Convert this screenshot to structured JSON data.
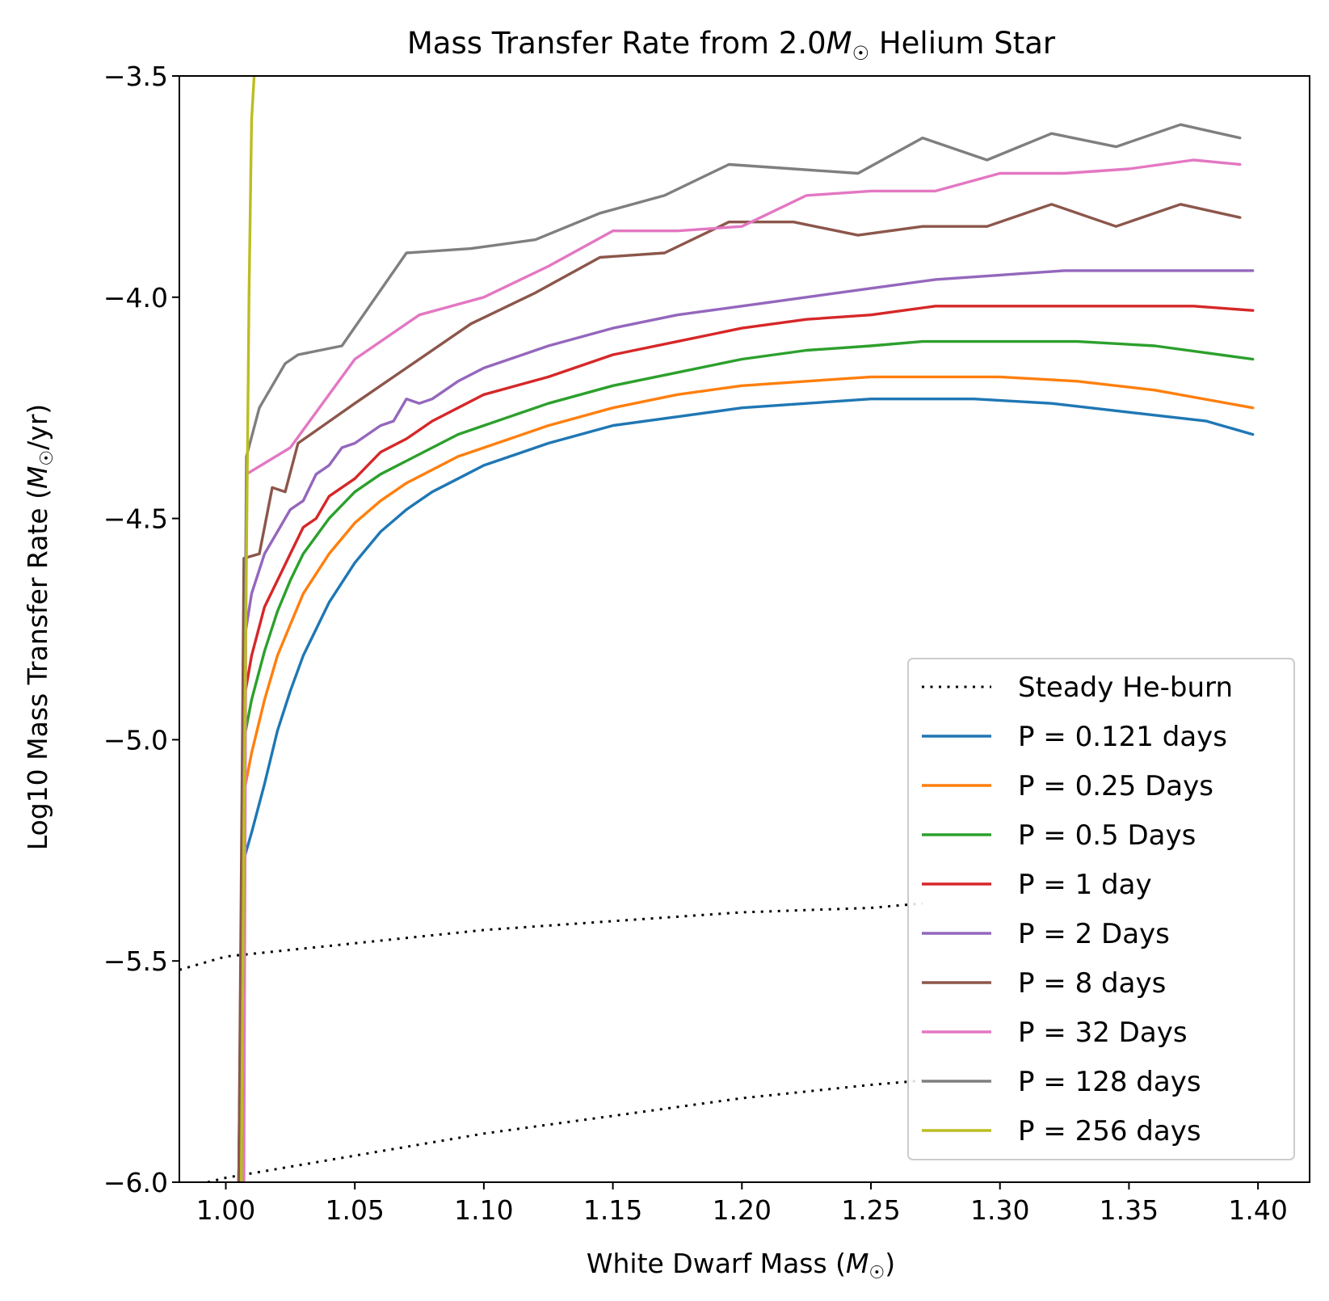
{
  "chart_data": {
    "type": "line",
    "title": "Mass Transfer Rate from 2.0M☉ Helium Star",
    "title_parts": {
      "pre": "Mass Transfer Rate from 2.0",
      "sym": "M",
      "sub": "☉",
      "post": " Helium Star"
    },
    "xlabel": "White Dwarf Mass (M☉)",
    "xlabel_parts": {
      "pre": "White Dwarf Mass (",
      "sym": "M",
      "sub": "☉",
      "post": ")"
    },
    "ylabel": "Log10 Mass Transfer Rate (M☉/yr)",
    "ylabel_parts": {
      "pre": "Log10 Mass Transfer Rate (",
      "sym": "M",
      "sub": "☉",
      "post": "/yr)"
    },
    "xlim": [
      0.982,
      1.42
    ],
    "ylim": [
      -6.0,
      -3.5
    ],
    "xticks": [
      1.0,
      1.05,
      1.1,
      1.15,
      1.2,
      1.25,
      1.3,
      1.35,
      1.4
    ],
    "xtick_labels": [
      "1.00",
      "1.05",
      "1.10",
      "1.15",
      "1.20",
      "1.25",
      "1.30",
      "1.35",
      "1.40"
    ],
    "yticks": [
      -3.5,
      -4.0,
      -4.5,
      -5.0,
      -5.5,
      -6.0
    ],
    "ytick_labels": [
      "−3.5",
      "−4.0",
      "−4.5",
      "−5.0",
      "−5.5",
      "−6.0"
    ],
    "grid": false,
    "legend_position": "lower-right",
    "legend": [
      {
        "label": "Steady He-burn",
        "color": "#000000",
        "style": "dotted"
      },
      {
        "label": "P = 0.121 days",
        "color": "#1f77b4",
        "style": "solid"
      },
      {
        "label": "P = 0.25 Days",
        "color": "#ff7f0e",
        "style": "solid"
      },
      {
        "label": "P = 0.5 Days",
        "color": "#2ca02c",
        "style": "solid"
      },
      {
        "label": "P = 1 day",
        "color": "#d62728",
        "style": "solid"
      },
      {
        "label": "P = 2 Days",
        "color": "#9467bd",
        "style": "solid"
      },
      {
        "label": "P = 8 days",
        "color": "#8c564b",
        "style": "solid"
      },
      {
        "label": "P = 32 Days",
        "color": "#e377c2",
        "style": "solid"
      },
      {
        "label": "P = 128 days",
        "color": "#7f7f7f",
        "style": "solid"
      },
      {
        "label": "P = 256 days",
        "color": "#bcbd22",
        "style": "solid"
      }
    ],
    "series": [
      {
        "name": "Steady He-burn",
        "color": "#000000",
        "style": "dotted",
        "x": [
          0.982,
          1.0,
          1.05,
          1.1,
          1.15,
          1.2,
          1.25,
          1.27
        ],
        "y": [
          -5.52,
          -5.49,
          -5.46,
          -5.43,
          -5.41,
          -5.39,
          -5.38,
          -5.37
        ]
      },
      {
        "name": "Steady He-burn (lower)",
        "color": "#000000",
        "style": "dotted",
        "x": [
          0.993,
          1.0,
          1.05,
          1.1,
          1.15,
          1.2,
          1.25,
          1.27
        ],
        "y": [
          -6.0,
          -5.99,
          -5.94,
          -5.89,
          -5.85,
          -5.81,
          -5.78,
          -5.77
        ]
      },
      {
        "name": "P = 0.121 days",
        "color": "#1f77b4",
        "style": "solid",
        "x": [
          1.005,
          1.007,
          1.01,
          1.015,
          1.02,
          1.025,
          1.03,
          1.04,
          1.05,
          1.06,
          1.07,
          1.08,
          1.09,
          1.1,
          1.125,
          1.15,
          1.175,
          1.2,
          1.225,
          1.25,
          1.265,
          1.29,
          1.32,
          1.35,
          1.38,
          1.398
        ],
        "y": [
          -6.0,
          -5.27,
          -5.21,
          -5.1,
          -4.98,
          -4.89,
          -4.81,
          -4.69,
          -4.6,
          -4.53,
          -4.48,
          -4.44,
          -4.41,
          -4.38,
          -4.33,
          -4.29,
          -4.27,
          -4.25,
          -4.24,
          -4.23,
          -4.23,
          -4.23,
          -4.24,
          -4.26,
          -4.28,
          -4.31
        ]
      },
      {
        "name": "P = 0.25 Days",
        "color": "#ff7f0e",
        "style": "solid",
        "x": [
          1.005,
          1.007,
          1.01,
          1.015,
          1.02,
          1.025,
          1.03,
          1.04,
          1.05,
          1.06,
          1.07,
          1.08,
          1.09,
          1.1,
          1.125,
          1.15,
          1.175,
          1.2,
          1.225,
          1.25,
          1.27,
          1.3,
          1.33,
          1.36,
          1.398
        ],
        "y": [
          -6.0,
          -5.12,
          -5.03,
          -4.91,
          -4.81,
          -4.74,
          -4.67,
          -4.58,
          -4.51,
          -4.46,
          -4.42,
          -4.39,
          -4.36,
          -4.34,
          -4.29,
          -4.25,
          -4.22,
          -4.2,
          -4.19,
          -4.18,
          -4.18,
          -4.18,
          -4.19,
          -4.21,
          -4.25
        ]
      },
      {
        "name": "P = 0.5 Days",
        "color": "#2ca02c",
        "style": "solid",
        "x": [
          1.005,
          1.007,
          1.01,
          1.015,
          1.02,
          1.025,
          1.03,
          1.04,
          1.05,
          1.06,
          1.07,
          1.08,
          1.09,
          1.1,
          1.125,
          1.15,
          1.175,
          1.2,
          1.225,
          1.25,
          1.27,
          1.3,
          1.33,
          1.36,
          1.398
        ],
        "y": [
          -6.0,
          -5.0,
          -4.91,
          -4.8,
          -4.71,
          -4.64,
          -4.58,
          -4.5,
          -4.44,
          -4.4,
          -4.37,
          -4.34,
          -4.31,
          -4.29,
          -4.24,
          -4.2,
          -4.17,
          -4.14,
          -4.12,
          -4.11,
          -4.1,
          -4.1,
          -4.1,
          -4.11,
          -4.14
        ]
      },
      {
        "name": "P = 1 day",
        "color": "#d62728",
        "style": "solid",
        "x": [
          1.005,
          1.007,
          1.01,
          1.015,
          1.02,
          1.025,
          1.03,
          1.035,
          1.04,
          1.05,
          1.06,
          1.07,
          1.08,
          1.09,
          1.1,
          1.125,
          1.15,
          1.175,
          1.2,
          1.225,
          1.25,
          1.275,
          1.3,
          1.325,
          1.35,
          1.375,
          1.398
        ],
        "y": [
          -6.0,
          -4.91,
          -4.81,
          -4.7,
          -4.64,
          -4.58,
          -4.52,
          -4.5,
          -4.45,
          -4.41,
          -4.35,
          -4.32,
          -4.28,
          -4.25,
          -4.22,
          -4.18,
          -4.13,
          -4.1,
          -4.07,
          -4.05,
          -4.04,
          -4.02,
          -4.02,
          -4.02,
          -4.02,
          -4.02,
          -4.03
        ]
      },
      {
        "name": "P = 2 Days",
        "color": "#9467bd",
        "style": "solid",
        "x": [
          1.005,
          1.007,
          1.01,
          1.015,
          1.02,
          1.025,
          1.03,
          1.035,
          1.04,
          1.045,
          1.05,
          1.06,
          1.065,
          1.07,
          1.075,
          1.08,
          1.09,
          1.1,
          1.125,
          1.15,
          1.175,
          1.2,
          1.225,
          1.25,
          1.275,
          1.3,
          1.325,
          1.35,
          1.375,
          1.398
        ],
        "y": [
          -6.0,
          -4.78,
          -4.67,
          -4.58,
          -4.53,
          -4.48,
          -4.46,
          -4.4,
          -4.38,
          -4.34,
          -4.33,
          -4.29,
          -4.28,
          -4.23,
          -4.24,
          -4.23,
          -4.19,
          -4.16,
          -4.11,
          -4.07,
          -4.04,
          -4.02,
          -4.0,
          -3.98,
          -3.96,
          -3.95,
          -3.94,
          -3.94,
          -3.94,
          -3.94
        ]
      },
      {
        "name": "P = 8 days",
        "color": "#8c564b",
        "style": "solid",
        "x": [
          1.005,
          1.007,
          1.013,
          1.018,
          1.023,
          1.028,
          1.05,
          1.07,
          1.095,
          1.12,
          1.145,
          1.17,
          1.195,
          1.22,
          1.245,
          1.27,
          1.295,
          1.32,
          1.345,
          1.37,
          1.393
        ],
        "y": [
          -6.0,
          -4.59,
          -4.58,
          -4.43,
          -4.44,
          -4.33,
          -4.24,
          -4.16,
          -4.06,
          -3.99,
          -3.91,
          -3.9,
          -3.83,
          -3.83,
          -3.86,
          -3.84,
          -3.84,
          -3.79,
          -3.84,
          -3.79,
          -3.82
        ]
      },
      {
        "name": "P = 32 Days",
        "color": "#e377c2",
        "style": "solid",
        "x": [
          1.007,
          1.008,
          1.025,
          1.05,
          1.075,
          1.1,
          1.125,
          1.15,
          1.175,
          1.2,
          1.225,
          1.25,
          1.275,
          1.3,
          1.325,
          1.35,
          1.375,
          1.393
        ],
        "y": [
          -6.0,
          -4.4,
          -4.34,
          -4.14,
          -4.04,
          -4.0,
          -3.93,
          -3.85,
          -3.85,
          -3.84,
          -3.77,
          -3.76,
          -3.76,
          -3.72,
          -3.72,
          -3.71,
          -3.69,
          -3.7
        ]
      },
      {
        "name": "P = 128 days",
        "color": "#7f7f7f",
        "style": "solid",
        "x": [
          1.006,
          1.008,
          1.013,
          1.018,
          1.023,
          1.028,
          1.045,
          1.07,
          1.095,
          1.12,
          1.145,
          1.17,
          1.195,
          1.22,
          1.245,
          1.27,
          1.295,
          1.32,
          1.345,
          1.37,
          1.393
        ],
        "y": [
          -6.0,
          -4.36,
          -4.25,
          -4.2,
          -4.15,
          -4.13,
          -4.11,
          -3.9,
          -3.89,
          -3.87,
          -3.81,
          -3.77,
          -3.7,
          -3.71,
          -3.72,
          -3.64,
          -3.69,
          -3.63,
          -3.66,
          -3.61,
          -3.64
        ]
      },
      {
        "name": "P = 256 days",
        "color": "#bcbd22",
        "style": "solid",
        "x": [
          1.006,
          1.007,
          1.008,
          1.009,
          1.01,
          1.011
        ],
        "y": [
          -6.0,
          -5.2,
          -4.6,
          -4.0,
          -3.6,
          -3.5
        ]
      }
    ]
  }
}
